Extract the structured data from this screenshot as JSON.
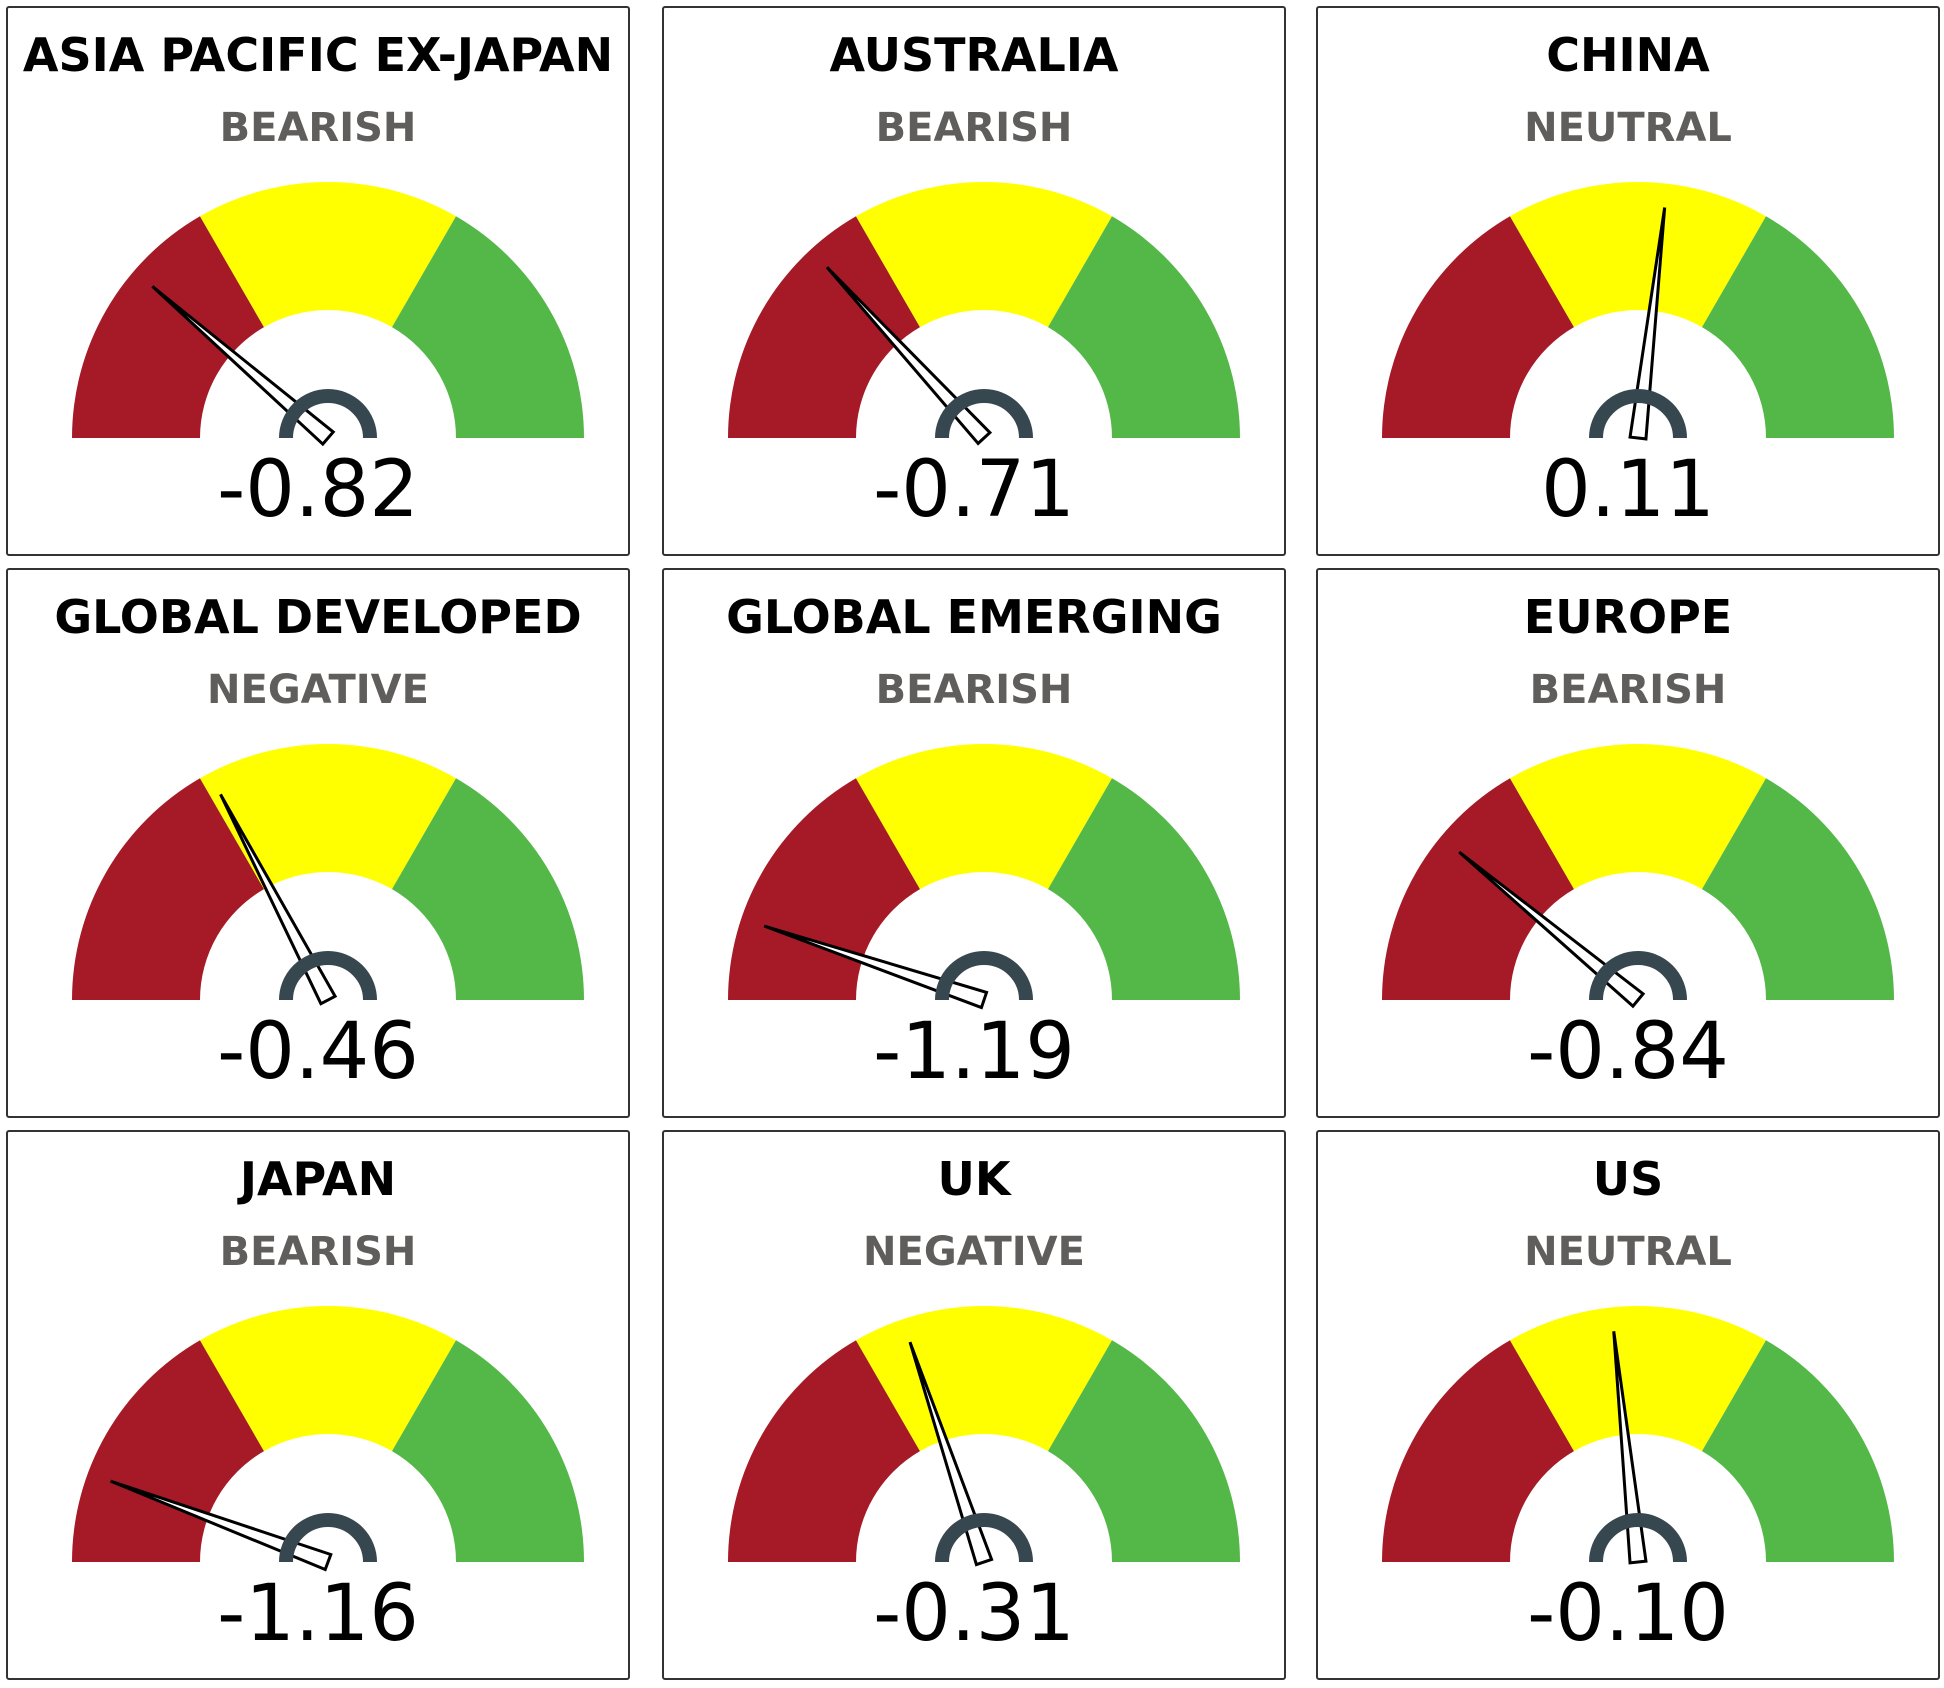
{
  "chart_data": [
    {
      "type": "gauge",
      "title": "ASIA PACIFIC EX-JAPAN",
      "status": "BEARISH",
      "value": -0.82,
      "value_label": "-0.82",
      "range": [
        -1.5,
        1.5
      ],
      "bands": [
        {
          "from": -1.5,
          "to": -0.5,
          "color": "#a51a26"
        },
        {
          "from": -0.5,
          "to": 0.5,
          "color": "#ffff00"
        },
        {
          "from": 0.5,
          "to": 1.5,
          "color": "#54b848"
        }
      ]
    },
    {
      "type": "gauge",
      "title": "AUSTRALIA",
      "status": "BEARISH",
      "value": -0.71,
      "value_label": "-0.71",
      "range": [
        -1.5,
        1.5
      ],
      "bands": [
        {
          "from": -1.5,
          "to": -0.5,
          "color": "#a51a26"
        },
        {
          "from": -0.5,
          "to": 0.5,
          "color": "#ffff00"
        },
        {
          "from": 0.5,
          "to": 1.5,
          "color": "#54b848"
        }
      ]
    },
    {
      "type": "gauge",
      "title": "CHINA",
      "status": "NEUTRAL",
      "value": 0.11,
      "value_label": "0.11",
      "range": [
        -1.5,
        1.5
      ],
      "bands": [
        {
          "from": -1.5,
          "to": -0.5,
          "color": "#a51a26"
        },
        {
          "from": -0.5,
          "to": 0.5,
          "color": "#ffff00"
        },
        {
          "from": 0.5,
          "to": 1.5,
          "color": "#54b848"
        }
      ]
    },
    {
      "type": "gauge",
      "title": "GLOBAL DEVELOPED",
      "status": "NEGATIVE",
      "value": -0.46,
      "value_label": "-0.46",
      "range": [
        -1.5,
        1.5
      ],
      "bands": [
        {
          "from": -1.5,
          "to": -0.5,
          "color": "#a51a26"
        },
        {
          "from": -0.5,
          "to": 0.5,
          "color": "#ffff00"
        },
        {
          "from": 0.5,
          "to": 1.5,
          "color": "#54b848"
        }
      ]
    },
    {
      "type": "gauge",
      "title": "GLOBAL EMERGING",
      "status": "BEARISH",
      "value": -1.19,
      "value_label": "-1.19",
      "range": [
        -1.5,
        1.5
      ],
      "bands": [
        {
          "from": -1.5,
          "to": -0.5,
          "color": "#a51a26"
        },
        {
          "from": -0.5,
          "to": 0.5,
          "color": "#ffff00"
        },
        {
          "from": 0.5,
          "to": 1.5,
          "color": "#54b848"
        }
      ]
    },
    {
      "type": "gauge",
      "title": "EUROPE",
      "status": "BEARISH",
      "value": -0.84,
      "value_label": "-0.84",
      "range": [
        -1.5,
        1.5
      ],
      "bands": [
        {
          "from": -1.5,
          "to": -0.5,
          "color": "#a51a26"
        },
        {
          "from": -0.5,
          "to": 0.5,
          "color": "#ffff00"
        },
        {
          "from": 0.5,
          "to": 1.5,
          "color": "#54b848"
        }
      ]
    },
    {
      "type": "gauge",
      "title": "JAPAN",
      "status": "BEARISH",
      "value": -1.16,
      "value_label": "-1.16",
      "range": [
        -1.5,
        1.5
      ],
      "bands": [
        {
          "from": -1.5,
          "to": -0.5,
          "color": "#a51a26"
        },
        {
          "from": -0.5,
          "to": 0.5,
          "color": "#ffff00"
        },
        {
          "from": 0.5,
          "to": 1.5,
          "color": "#54b848"
        }
      ]
    },
    {
      "type": "gauge",
      "title": "UK",
      "status": "NEGATIVE",
      "value": -0.31,
      "value_label": "-0.31",
      "range": [
        -1.5,
        1.5
      ],
      "bands": [
        {
          "from": -1.5,
          "to": -0.5,
          "color": "#a51a26"
        },
        {
          "from": -0.5,
          "to": 0.5,
          "color": "#ffff00"
        },
        {
          "from": 0.5,
          "to": 1.5,
          "color": "#54b848"
        }
      ]
    },
    {
      "type": "gauge",
      "title": "US",
      "status": "NEUTRAL",
      "value": -0.1,
      "value_label": "-0.10",
      "range": [
        -1.5,
        1.5
      ],
      "bands": [
        {
          "from": -1.5,
          "to": -0.5,
          "color": "#a51a26"
        },
        {
          "from": -0.5,
          "to": 0.5,
          "color": "#ffff00"
        },
        {
          "from": 0.5,
          "to": 1.5,
          "color": "#54b848"
        }
      ]
    }
  ],
  "colors": {
    "needle": "#000000",
    "hub": "#37474f",
    "status_text": "#605e5c"
  }
}
